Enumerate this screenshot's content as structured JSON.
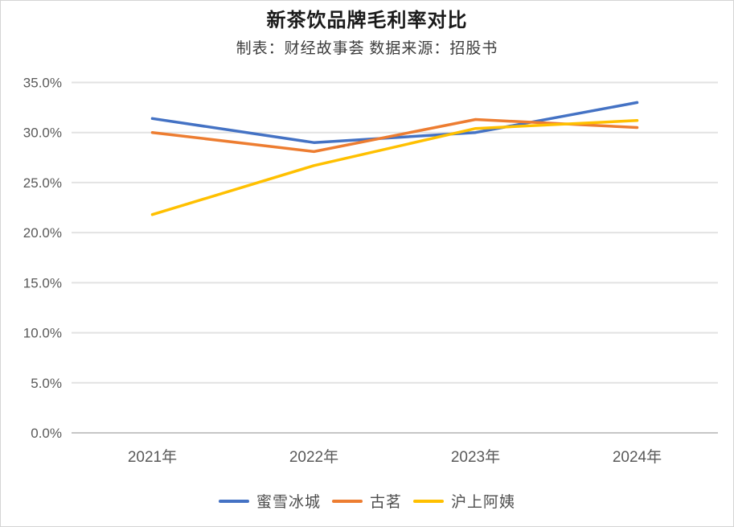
{
  "page": {
    "title": "新茶饮品牌毛利率对比",
    "subtitle": "制表：财经故事荟 数据来源：招股书"
  },
  "chart_data": {
    "type": "line",
    "title": "新茶饮品牌毛利率对比",
    "subtitle": "制表：财经故事荟 数据来源：招股书",
    "categories": [
      "2021年",
      "2022年",
      "2023年",
      "2024年"
    ],
    "series": [
      {
        "name": "蜜雪冰城",
        "color": "#4472C4",
        "values": [
          31.4,
          29.0,
          30.0,
          33.0
        ]
      },
      {
        "name": "古茗",
        "color": "#ED7D31",
        "values": [
          30.0,
          28.1,
          31.3,
          30.5
        ]
      },
      {
        "name": "沪上阿姨",
        "color": "#FFC000",
        "values": [
          21.8,
          26.7,
          30.4,
          31.2
        ]
      }
    ],
    "unit": "%",
    "ylim": [
      0,
      35
    ],
    "ytick_step": 5,
    "ytick_labels": [
      "0.0%",
      "5.0%",
      "10.0%",
      "15.0%",
      "20.0%",
      "25.0%",
      "30.0%",
      "35.0%"
    ],
    "grid": true,
    "legend_position": "bottom",
    "style": {
      "grid_color": "#e2e2e2",
      "axis_line_color": "#c6c6c6",
      "tick_text_color": "#595959",
      "line_width": 3.5
    }
  }
}
